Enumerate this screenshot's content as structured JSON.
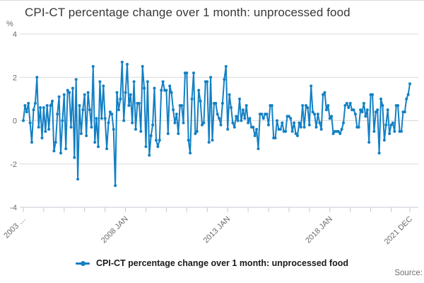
{
  "header": {
    "title": "CPI-CT percentage change over 1 month: unprocessed food"
  },
  "y_axis": {
    "unit_label": "%",
    "ticks": [
      4,
      2,
      0,
      -2,
      -4
    ],
    "min": -4,
    "max": 4
  },
  "x_axis": {
    "tick_interval": "1 year",
    "labels": [
      {
        "month_index": 0,
        "text": "2003 …"
      },
      {
        "month_index": 60,
        "text": "2008 JAN"
      },
      {
        "month_index": 120,
        "text": "2013 JAN"
      },
      {
        "month_index": 180,
        "text": "2018 JAN"
      },
      {
        "month_index": 227,
        "text": "2021 DEC"
      }
    ]
  },
  "legend": {
    "label": "CPI-CT percentage change over 1 month: unprocessed food"
  },
  "footer": {
    "source_label": "Source:"
  },
  "colors": {
    "line": "#1380C4",
    "grid": "#d9d9d9",
    "axis": "#c3cbd6",
    "text_muted": "#6b6b6b",
    "title": "#38373a"
  },
  "chart_data": {
    "type": "line",
    "title": "CPI-CT percentage change over 1 month: unprocessed food",
    "xlabel": "",
    "ylabel": "%",
    "ylim": [
      -4,
      4
    ],
    "grid": "horizontal",
    "legend_position": "bottom",
    "x_start": "2003-01",
    "x_end": "2021-12",
    "frequency": "monthly",
    "x_tick_labels": [
      "2003 …",
      "2008 JAN",
      "2013 JAN",
      "2018 JAN",
      "2021 DEC"
    ],
    "marker": "dot",
    "series": [
      {
        "name": "CPI-CT percentage change over 1 month: unprocessed food",
        "values": [
          0.0,
          0.7,
          0.4,
          0.8,
          -0.1,
          -1.0,
          0.5,
          0.8,
          2.0,
          -0.3,
          0.6,
          -0.8,
          0.6,
          -0.5,
          0.7,
          -0.4,
          0.7,
          0.9,
          -1.4,
          -1.0,
          0.3,
          1.1,
          -1.5,
          0.0,
          1.2,
          -1.3,
          1.4,
          1.3,
          -0.3,
          1.5,
          -1.7,
          1.9,
          -2.7,
          0.7,
          -0.6,
          0.5,
          1.2,
          -0.7,
          1.3,
          0.5,
          -0.3,
          2.5,
          -1.0,
          0.1,
          -1.2,
          1.8,
          0.1,
          1.6,
          0.1,
          -1.3,
          -0.1,
          0.4,
          0.3,
          -0.4,
          -3.0,
          1.3,
          0.5,
          1.0,
          2.7,
          0.0,
          1.3,
          2.6,
          0.7,
          1.2,
          -0.1,
          1.8,
          -0.4,
          0.8,
          0.8,
          -0.5,
          2.5,
          1.5,
          -1.2,
          1.8,
          -1.6,
          -0.7,
          -0.2,
          1.5,
          -0.9,
          -1.2,
          -0.9,
          1.4,
          1.8,
          1.4,
          1.4,
          -0.6,
          1.6,
          1.3,
          0.5,
          -0.1,
          0.3,
          -0.6,
          0.7,
          0.7,
          -0.1,
          2.2,
          2.2,
          -0.9,
          -1.5,
          1.0,
          2.2,
          -0.6,
          -0.5,
          1.4,
          0.9,
          -0.2,
          -0.1,
          1.8,
          1.8,
          -1.0,
          2.0,
          -0.9,
          0.8,
          0.8,
          0.3,
          0.1,
          -0.2,
          0.8,
          1.9,
          2.5,
          -0.4,
          1.2,
          0.6,
          -0.1,
          -0.3,
          0.2,
          0.0,
          1.0,
          0.0,
          0.5,
          0.1,
          0.7,
          -0.1,
          0.1,
          -0.3,
          -0.3,
          -0.7,
          -0.4,
          -1.3,
          0.3,
          0.3,
          0.1,
          0.3,
          0.3,
          -0.2,
          0.7,
          0.7,
          -0.8,
          -0.8,
          0.0,
          -0.4,
          -0.4,
          -0.1,
          -0.5,
          -0.5,
          0.2,
          0.2,
          0.1,
          -0.5,
          -0.1,
          -0.6,
          -0.7,
          -0.1,
          -0.3,
          0.7,
          -0.3,
          0.7,
          0.6,
          -0.2,
          1.6,
          0.4,
          0.3,
          -0.3,
          0.3,
          -0.1,
          -0.4,
          1.2,
          1.3,
          0.5,
          0.7,
          0.1,
          0.2,
          -0.6,
          -0.5,
          -0.5,
          -0.5,
          -0.6,
          -0.4,
          -0.1,
          0.7,
          0.8,
          0.6,
          0.8,
          0.5,
          0.5,
          0.3,
          -0.3,
          -0.3,
          0.5,
          0.4,
          0.8,
          0.2,
          0.5,
          -1.0,
          1.2,
          1.2,
          -0.5,
          0.4,
          0.5,
          -1.5,
          1.0,
          0.7,
          -0.9,
          -0.2,
          0.5,
          -0.6,
          -0.2,
          -0.1,
          -0.5,
          0.7,
          0.7,
          -0.5,
          -0.5,
          0.4,
          0.4,
          1.0,
          1.2,
          1.7
        ]
      }
    ]
  }
}
